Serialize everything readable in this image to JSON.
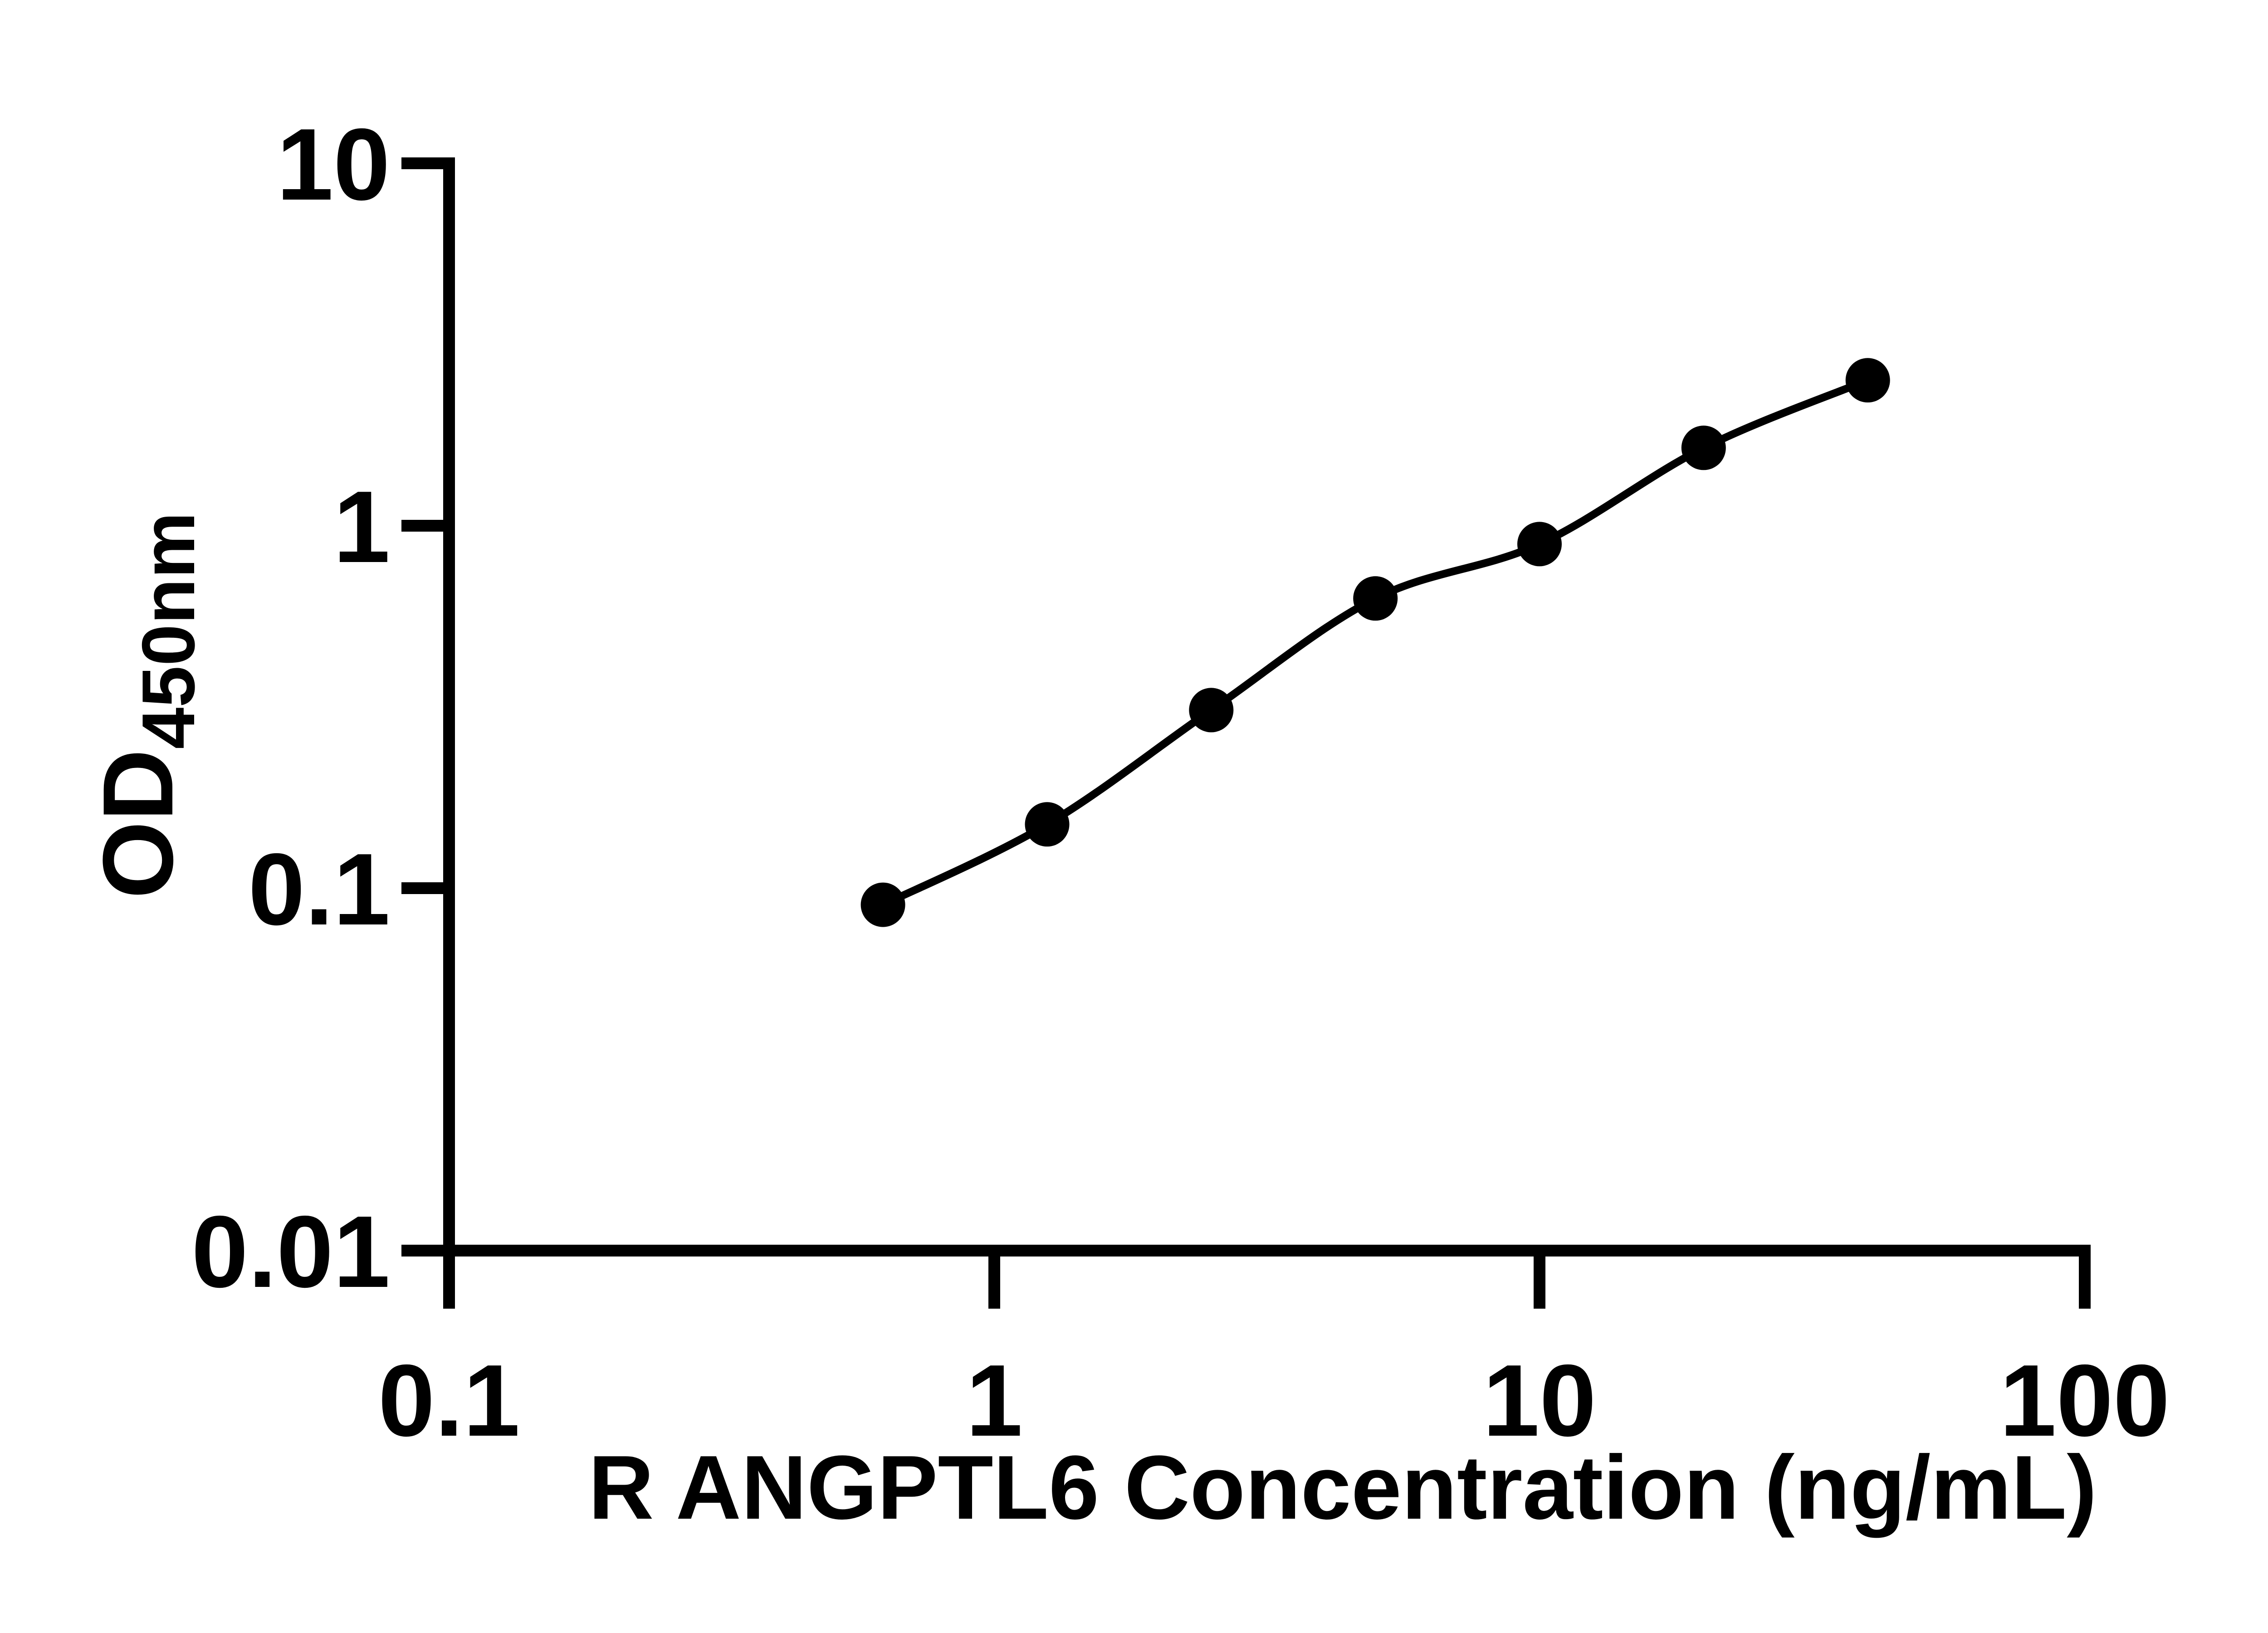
{
  "figure": {
    "background": "#ffffff",
    "foreground": "#000000"
  },
  "chart_data": {
    "type": "scatter",
    "title": "",
    "xlabel": "R ANGPTL6 Concentration (ng/mL)",
    "ylabel_main": "OD",
    "ylabel_sub": "450nm",
    "x_scale": "log",
    "y_scale": "log",
    "xlim": [
      0.1,
      100
    ],
    "ylim": [
      0.01,
      10
    ],
    "grid": false,
    "legend": false,
    "x_ticks": [
      {
        "v": 0.1,
        "label": "0.1"
      },
      {
        "v": 1,
        "label": "1"
      },
      {
        "v": 10,
        "label": "10"
      },
      {
        "v": 100,
        "label": "100"
      }
    ],
    "y_ticks": [
      {
        "v": 0.01,
        "label": "0.01"
      },
      {
        "v": 0.1,
        "label": "0.1"
      },
      {
        "v": 1,
        "label": "1"
      },
      {
        "v": 10,
        "label": "10"
      }
    ],
    "series": [
      {
        "marker": "filled-circle",
        "color": "#000000",
        "fit": "smooth-curve",
        "points": [
          {
            "x": 0.625,
            "y": 0.09
          },
          {
            "x": 1.25,
            "y": 0.15
          },
          {
            "x": 2.5,
            "y": 0.31
          },
          {
            "x": 5,
            "y": 0.63
          },
          {
            "x": 10,
            "y": 0.89
          },
          {
            "x": 20,
            "y": 1.64
          },
          {
            "x": 40,
            "y": 2.52
          }
        ]
      }
    ]
  }
}
